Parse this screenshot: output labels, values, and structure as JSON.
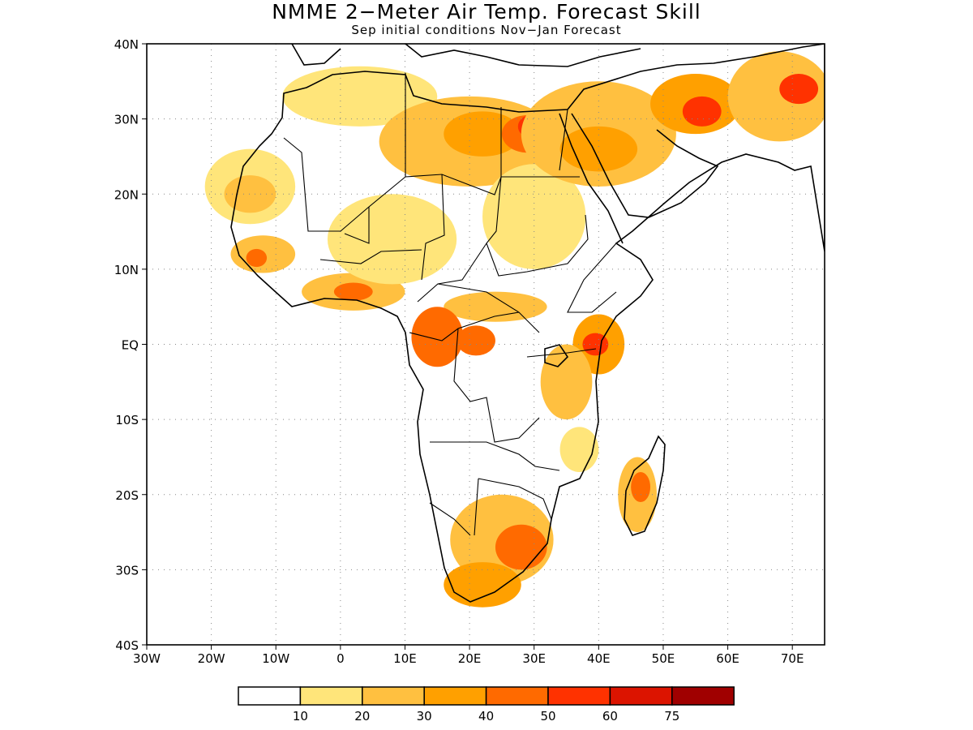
{
  "title": "NMME 2−Meter Air Temp. Forecast Skill",
  "subtitle": "Sep initial conditions  Nov−Jan Forecast",
  "map": {
    "lon_range": [
      -30,
      75
    ],
    "lat_range": [
      -40,
      40
    ],
    "x_tick_labels": [
      "30W",
      "20W",
      "10W",
      "0",
      "10E",
      "20E",
      "30E",
      "40E",
      "50E",
      "60E",
      "70E"
    ],
    "y_tick_labels": [
      "40N",
      "30N",
      "20N",
      "10N",
      "EQ",
      "10S",
      "20S",
      "30S",
      "40S"
    ],
    "grid": "dotted"
  },
  "colorbar": {
    "thresholds": [
      "10",
      "20",
      "30",
      "40",
      "50",
      "60",
      "75"
    ],
    "colors": [
      "#ffffff",
      "#ffe57a",
      "#ffc040",
      "#ffa000",
      "#ff6a00",
      "#ff3200",
      "#dc1400",
      "#a00000"
    ]
  },
  "skill_regions": [
    {
      "lon": -14,
      "lat": 21,
      "rx": 7,
      "ry": 5,
      "level": 1
    },
    {
      "lon": -14,
      "lat": 20,
      "rx": 4,
      "ry": 2.5,
      "level": 2
    },
    {
      "lon": -12,
      "lat": 12,
      "rx": 5,
      "ry": 2.5,
      "level": 2
    },
    {
      "lon": -13,
      "lat": 11.5,
      "rx": 1.6,
      "ry": 1.2,
      "level": 4
    },
    {
      "lon": 2,
      "lat": 7,
      "rx": 8,
      "ry": 2.5,
      "level": 2
    },
    {
      "lon": 2,
      "lat": 7,
      "rx": 3,
      "ry": 1.2,
      "level": 4
    },
    {
      "lon": 3,
      "lat": 33,
      "rx": 12,
      "ry": 4,
      "level": 1
    },
    {
      "lon": 20,
      "lat": 27,
      "rx": 14,
      "ry": 6,
      "level": 2
    },
    {
      "lon": 22,
      "lat": 28,
      "rx": 6,
      "ry": 3,
      "level": 3
    },
    {
      "lon": 29,
      "lat": 28,
      "rx": 4,
      "ry": 2.5,
      "level": 4
    },
    {
      "lon": 29.5,
      "lat": 29,
      "rx": 2,
      "ry": 1.5,
      "level": 5
    },
    {
      "lon": 30,
      "lat": 17,
      "rx": 8,
      "ry": 7,
      "level": 1
    },
    {
      "lon": 8,
      "lat": 14,
      "rx": 10,
      "ry": 6,
      "level": 1
    },
    {
      "lon": 40,
      "lat": 28,
      "rx": 12,
      "ry": 7,
      "level": 2
    },
    {
      "lon": 40,
      "lat": 26,
      "rx": 6,
      "ry": 3,
      "level": 3
    },
    {
      "lon": 55,
      "lat": 32,
      "rx": 7,
      "ry": 4,
      "level": 3
    },
    {
      "lon": 56,
      "lat": 31,
      "rx": 3,
      "ry": 2,
      "level": 5
    },
    {
      "lon": 68,
      "lat": 33,
      "rx": 8,
      "ry": 6,
      "level": 2
    },
    {
      "lon": 71,
      "lat": 34,
      "rx": 3,
      "ry": 2,
      "level": 5
    },
    {
      "lon": 24,
      "lat": 5,
      "rx": 8,
      "ry": 2,
      "level": 2
    },
    {
      "lon": 15,
      "lat": 1,
      "rx": 4,
      "ry": 4,
      "level": 4
    },
    {
      "lon": 21,
      "lat": 0.5,
      "rx": 3,
      "ry": 2,
      "level": 4
    },
    {
      "lon": 40,
      "lat": 0,
      "rx": 4,
      "ry": 4,
      "level": 3
    },
    {
      "lon": 39.5,
      "lat": 0,
      "rx": 2,
      "ry": 1.5,
      "level": 5
    },
    {
      "lon": 35,
      "lat": -5,
      "rx": 4,
      "ry": 5,
      "level": 2
    },
    {
      "lon": 37,
      "lat": -14,
      "rx": 3,
      "ry": 3,
      "level": 1
    },
    {
      "lon": 46,
      "lat": -20,
      "rx": 3,
      "ry": 5,
      "level": 2
    },
    {
      "lon": 46.5,
      "lat": -19,
      "rx": 1.5,
      "ry": 2,
      "level": 4
    },
    {
      "lon": 25,
      "lat": -26,
      "rx": 8,
      "ry": 6,
      "level": 2
    },
    {
      "lon": 28,
      "lat": -27,
      "rx": 4,
      "ry": 3,
      "level": 4
    },
    {
      "lon": 22,
      "lat": -32,
      "rx": 6,
      "ry": 3,
      "level": 3
    }
  ]
}
